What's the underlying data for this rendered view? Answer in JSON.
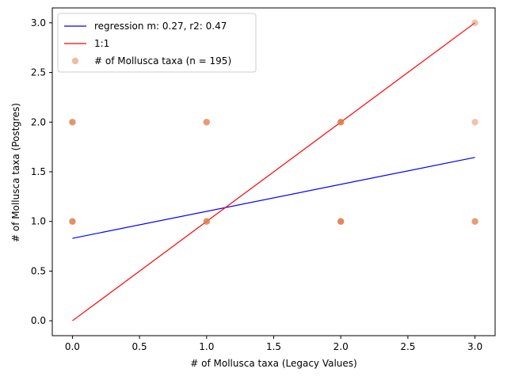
{
  "chart_data": {
    "type": "scatter",
    "xlabel": "# of Mollusca taxa (Legacy Values)",
    "ylabel": "# of Mollusca taxa (Postgres)",
    "xlim": [
      -0.15,
      3.15
    ],
    "ylim": [
      -0.15,
      3.15
    ],
    "x_ticks": [
      0.0,
      0.5,
      1.0,
      1.5,
      2.0,
      2.5,
      3.0
    ],
    "x_tick_labels": [
      "0.0",
      "0.5",
      "1.0",
      "1.5",
      "2.0",
      "2.5",
      "3.0"
    ],
    "y_ticks": [
      0.0,
      0.5,
      1.0,
      1.5,
      2.0,
      2.5,
      3.0
    ],
    "y_tick_labels": [
      "0.0",
      "0.5",
      "1.0",
      "1.5",
      "2.0",
      "2.5",
      "3.0"
    ],
    "grid": false,
    "legend_position": "top-left",
    "series": [
      {
        "name": "regression m: 0.27, r2: 0.47",
        "kind": "line",
        "color": "#0000ff",
        "points": [
          [
            0,
            0.83
          ],
          [
            3,
            1.645
          ]
        ]
      },
      {
        "name": "1:1",
        "kind": "line",
        "color": "#ff0000",
        "points": [
          [
            0,
            0
          ],
          [
            3,
            3
          ]
        ]
      },
      {
        "name": "# of Mollusca taxa (n = 195)",
        "kind": "scatter",
        "color": "#e07b48",
        "points": [
          [
            0,
            1
          ],
          [
            0,
            2
          ],
          [
            1,
            1
          ],
          [
            1,
            2
          ],
          [
            2,
            1
          ],
          [
            2,
            2
          ],
          [
            3,
            1
          ],
          [
            3,
            2
          ],
          [
            3,
            3
          ]
        ],
        "point_opacity": [
          0.85,
          0.8,
          0.85,
          0.75,
          0.9,
          0.9,
          0.75,
          0.45,
          0.45
        ]
      }
    ]
  }
}
